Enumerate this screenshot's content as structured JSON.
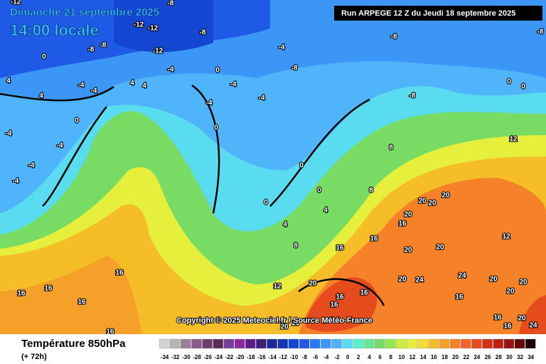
{
  "header": {
    "title": "Dimanche 21 septembre 2025",
    "time": "14:00 locale",
    "run": "Run ARPEGE 12 Z du Jeudi 18 septembre 2025"
  },
  "map": {
    "copyright": "Copyright © 2025 Meteociel.fr / Source Météo-France",
    "contour_labels": [
      -12,
      -12,
      -12,
      -8,
      -8,
      -8,
      -8,
      -8,
      -8,
      -12,
      -4,
      -4,
      -8,
      0,
      0,
      4,
      4,
      -4,
      -4,
      4,
      4,
      -4,
      -4,
      -4,
      0,
      -8,
      0,
      0,
      -4,
      -4,
      -4,
      -4,
      0,
      0,
      0,
      0,
      4,
      4,
      8,
      8,
      12,
      8,
      12,
      16,
      16,
      16,
      20,
      20,
      20,
      20,
      20,
      20,
      12,
      16,
      16,
      16,
      16,
      16,
      20,
      24,
      24,
      20,
      16,
      16,
      16,
      20,
      20,
      20,
      16,
      20,
      20,
      16,
      16,
      20,
      24
    ]
  },
  "footer": {
    "variable": "Température 850hPa",
    "lead": "(+ 72h)"
  },
  "legend": {
    "values": [
      -34,
      -32,
      -30,
      -28,
      -26,
      -24,
      -22,
      -20,
      -18,
      -16,
      -14,
      -12,
      -10,
      -8,
      -6,
      -4,
      -2,
      0,
      2,
      4,
      6,
      8,
      10,
      12,
      14,
      16,
      18,
      20,
      22,
      24,
      26,
      28,
      30,
      32,
      34
    ],
    "colors": [
      "#d2d2d2",
      "#b4b4b4",
      "#9a7e9a",
      "#8a5a8a",
      "#6e3c6e",
      "#5a2a5a",
      "#7a3c9a",
      "#8c28a0",
      "#5a1e8c",
      "#3c1e78",
      "#1e2896",
      "#1432b4",
      "#1446d2",
      "#1e5ae6",
      "#2878f0",
      "#3c96f5",
      "#50b4fa",
      "#5adcf0",
      "#5af0c8",
      "#64e696",
      "#78dc64",
      "#96e650",
      "#c8f03c",
      "#e6f03c",
      "#f5dc32",
      "#f5be28",
      "#f5a028",
      "#f58228",
      "#f06428",
      "#e64b1e",
      "#d23214",
      "#be1e14",
      "#961414",
      "#640a0a",
      "#1e0000"
    ]
  }
}
